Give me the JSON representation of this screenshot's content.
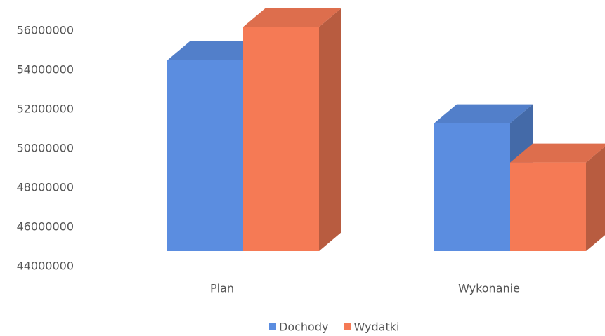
{
  "chart_data": {
    "type": "bar3d",
    "categories": [
      "Plan",
      "Wykonanie"
    ],
    "series": [
      {
        "name": "Dochody",
        "color": "#5b8de0",
        "values": [
          54500000,
          51300000
        ]
      },
      {
        "name": "Wydatki",
        "color": "#f57a55",
        "values": [
          56200000,
          49300000
        ]
      }
    ],
    "ylim": [
      44000000,
      56000000
    ],
    "yticks": [
      44000000,
      46000000,
      48000000,
      50000000,
      52000000,
      54000000,
      56000000
    ],
    "legend": "bottom"
  }
}
